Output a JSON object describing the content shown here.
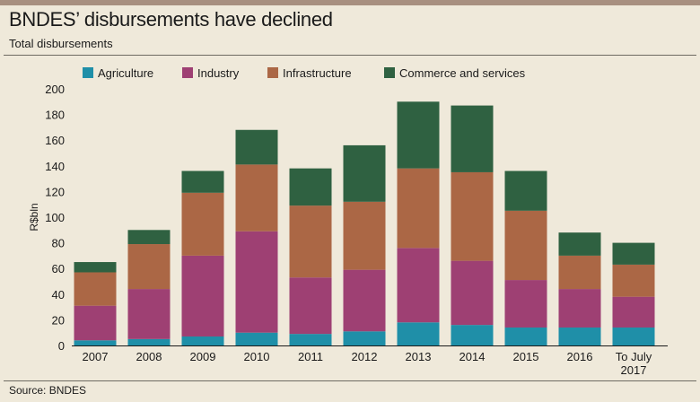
{
  "header": {
    "title": "BNDES’ disbursements have declined",
    "subtitle": "Total disbursements"
  },
  "footer": {
    "source": "Source: BNDES"
  },
  "chart_data": {
    "type": "bar",
    "stacked": true,
    "title": "BNDES’ disbursements have declined",
    "subtitle": "Total disbursements",
    "ylabel": "R$bln",
    "xlabel": "",
    "ylim": [
      0,
      200
    ],
    "yticks": [
      0,
      20,
      40,
      60,
      80,
      100,
      120,
      140,
      160,
      180,
      200
    ],
    "grid": false,
    "legend": "top",
    "categories": [
      "2007",
      "2008",
      "2009",
      "2010",
      "2011",
      "2012",
      "2013",
      "2014",
      "2015",
      "2016",
      "To July 2017"
    ],
    "series": [
      {
        "name": "Agriculture",
        "color": "#1f8fa8",
        "values": [
          4,
          5,
          7,
          10,
          9,
          11,
          18,
          16,
          14,
          14,
          14
        ]
      },
      {
        "name": "Industry",
        "color": "#9e4073",
        "values": [
          27,
          39,
          63,
          79,
          44,
          48,
          58,
          50,
          37,
          30,
          24
        ]
      },
      {
        "name": "Infrastructure",
        "color": "#ab6745",
        "values": [
          26,
          35,
          49,
          52,
          56,
          53,
          62,
          69,
          54,
          26,
          25
        ]
      },
      {
        "name": "Commerce and services",
        "color": "#2f6141",
        "values": [
          8,
          11,
          17,
          27,
          29,
          44,
          52,
          52,
          31,
          18,
          17
        ]
      }
    ]
  }
}
